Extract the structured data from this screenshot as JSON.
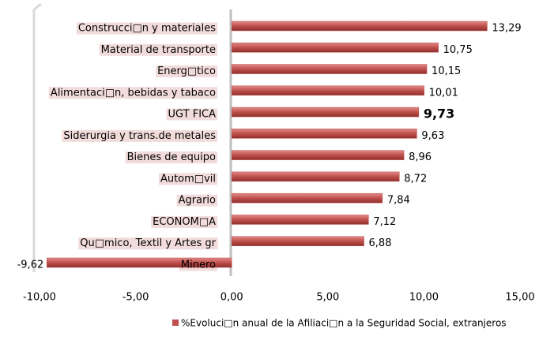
{
  "chart_data": {
    "type": "hbar",
    "categories": [
      "Construcci□n y materiales",
      "Material de transporte",
      "Energ□tico",
      "Alimentaci□n, bebidas y tabaco",
      "UGT FICA",
      "Siderurgia y trans.de metales",
      "Bienes de equipo",
      "Autom□vil",
      "Agrario",
      "ECONOM□A",
      "Qu□mico, Textil y Artes gr",
      "Minero"
    ],
    "series": [
      {
        "name": "%Evoluci□n anual de la Afiliaci□n a la Seguridad Social, extranjeros",
        "color": "#c0504d",
        "values": [
          13.29,
          10.75,
          10.15,
          10.01,
          9.73,
          9.63,
          8.96,
          8.72,
          7.84,
          7.12,
          6.88,
          -9.62
        ],
        "value_labels": [
          "13,29",
          "10,75",
          "10,15",
          "10,01",
          "9,73",
          "9,63",
          "8,96",
          "8,72",
          "7,84",
          "7,12",
          "6,88",
          "-9,62"
        ]
      }
    ],
    "xlim": [
      -10,
      15
    ],
    "xticks": [
      {
        "value": -10,
        "label": "-10,00"
      },
      {
        "value": -5,
        "label": "-5,00"
      },
      {
        "value": 0,
        "label": "0,00"
      },
      {
        "value": 5,
        "label": "5,00"
      },
      {
        "value": 10,
        "label": "10,00"
      },
      {
        "value": 15,
        "label": "15,00"
      }
    ],
    "highlight": 4,
    "negative_label_color": "#ff0000",
    "category_label_background": "#f2dcdb",
    "legend": "bottom"
  }
}
